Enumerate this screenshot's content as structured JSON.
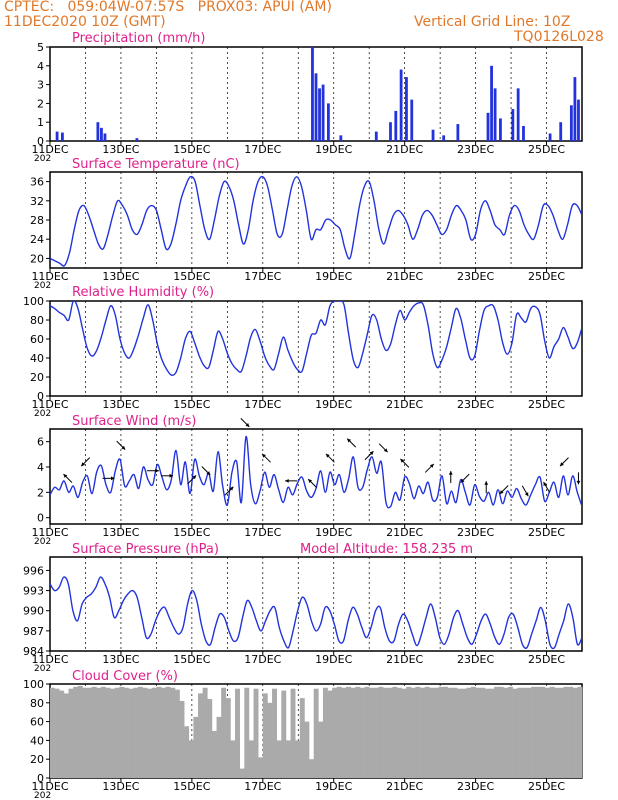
{
  "header": {
    "line1": "CPTEC:   059:04W-07:57S   PROX03: APUI (AM)",
    "line2": "11DEC2020 10Z (GMT)",
    "right1": "Vertical Grid Line: 10Z",
    "right2": "TQ0126L028"
  },
  "model_altitude": "Model Altitude: 158.235 m",
  "x_labels": [
    "11DEC",
    "13DEC",
    "15DEC",
    "17DEC",
    "19DEC",
    "21DEC",
    "23DEC",
    "25DEC"
  ],
  "x_sub": "202",
  "colors": {
    "header": "#e0782a",
    "title": "#e0208a",
    "series": "#2233dd",
    "cloud": "#aaaaaa"
  },
  "chart_data": [
    {
      "id": "precip",
      "type": "bar",
      "title": "Precipitation (mm/h)",
      "ylim": [
        0,
        5
      ],
      "yticks": [
        "0",
        "1",
        "2",
        "3",
        "4",
        "5"
      ],
      "x_range_days": [
        0,
        15
      ],
      "events": [
        [
          0.2,
          0.5
        ],
        [
          0.35,
          0.45
        ],
        [
          1.35,
          1.0
        ],
        [
          1.45,
          0.7
        ],
        [
          1.55,
          0.4
        ],
        [
          2.45,
          0.15
        ],
        [
          7.4,
          5.0
        ],
        [
          7.5,
          3.6
        ],
        [
          7.6,
          2.8
        ],
        [
          7.7,
          3.0
        ],
        [
          7.85,
          2.0
        ],
        [
          8.2,
          0.3
        ],
        [
          9.2,
          0.5
        ],
        [
          9.6,
          1.0
        ],
        [
          9.75,
          1.6
        ],
        [
          9.9,
          3.8
        ],
        [
          10.05,
          3.4
        ],
        [
          10.2,
          2.2
        ],
        [
          10.8,
          0.6
        ],
        [
          11.1,
          0.3
        ],
        [
          11.5,
          0.9
        ],
        [
          12.35,
          1.5
        ],
        [
          12.45,
          4.0
        ],
        [
          12.55,
          2.8
        ],
        [
          12.7,
          1.2
        ],
        [
          13.05,
          1.7
        ],
        [
          13.2,
          2.8
        ],
        [
          13.35,
          0.8
        ],
        [
          14.1,
          0.4
        ],
        [
          14.4,
          1.0
        ],
        [
          14.7,
          1.9
        ],
        [
          14.8,
          3.4
        ],
        [
          14.9,
          2.2
        ]
      ]
    },
    {
      "id": "temp",
      "type": "line",
      "title": "Surface Temperature (nC)",
      "ylim": [
        18,
        38
      ],
      "yticks": [
        "20",
        "24",
        "28",
        "32",
        "36"
      ],
      "ytick_values": [
        20,
        24,
        28,
        32,
        36
      ],
      "values": [
        20,
        19.5,
        19,
        18.5,
        21,
        26,
        30,
        31,
        29,
        26,
        23,
        22,
        25,
        29,
        32,
        31,
        29,
        26,
        25,
        27,
        30,
        31,
        30,
        26,
        22,
        23,
        27,
        32,
        35,
        37,
        36,
        31,
        26,
        24,
        28,
        33,
        36,
        35,
        32,
        27,
        23,
        26,
        32,
        36,
        37,
        35,
        30,
        25,
        25,
        30,
        35,
        37,
        35,
        30,
        24,
        26,
        26,
        28,
        28,
        27,
        26,
        22,
        20,
        25,
        31,
        35,
        36,
        32,
        26,
        23,
        26,
        29,
        30,
        29,
        27,
        24,
        26,
        29,
        30,
        29,
        27,
        25,
        26,
        29,
        31,
        30,
        28,
        24,
        25,
        30,
        32,
        30,
        27,
        26,
        25,
        29,
        31,
        30,
        27,
        25,
        24,
        27,
        31,
        31,
        29,
        26,
        24,
        27,
        31,
        31,
        29
      ]
    },
    {
      "id": "rh",
      "type": "line",
      "title": "Relative Humidity (%)",
      "ylim": [
        0,
        100
      ],
      "yticks": [
        "0",
        "20",
        "40",
        "60",
        "80",
        "100"
      ],
      "ytick_values": [
        0,
        20,
        40,
        60,
        80,
        100
      ],
      "values": [
        95,
        92,
        88,
        85,
        80,
        100,
        92,
        70,
        50,
        42,
        48,
        62,
        80,
        95,
        85,
        60,
        45,
        40,
        50,
        65,
        82,
        96,
        80,
        55,
        38,
        28,
        22,
        25,
        40,
        60,
        68,
        56,
        42,
        32,
        30,
        48,
        68,
        60,
        45,
        34,
        28,
        26,
        42,
        62,
        70,
        58,
        42,
        32,
        28,
        45,
        62,
        48,
        36,
        28,
        26,
        45,
        64,
        66,
        80,
        75,
        95,
        100,
        100,
        96,
        65,
        38,
        30,
        45,
        65,
        85,
        80,
        60,
        48,
        55,
        75,
        90,
        80,
        88,
        95,
        98,
        96,
        75,
        45,
        30,
        38,
        52,
        72,
        92,
        82,
        60,
        40,
        42,
        68,
        90,
        95,
        95,
        80,
        56,
        44,
        56,
        86,
        82,
        78,
        92,
        94,
        86,
        58,
        40,
        52,
        60,
        72,
        62,
        50,
        56,
        72
      ]
    },
    {
      "id": "wind",
      "type": "line",
      "title": "Surface Wind (m/s)",
      "ylim": [
        -0.5,
        7
      ],
      "yticks": [
        "0",
        "2",
        "4",
        "6"
      ],
      "ytick_values": [
        0,
        2,
        4,
        6
      ],
      "values": [
        1.8,
        2.4,
        2.2,
        2.9,
        2.0,
        2.5,
        1.6,
        2.8,
        3.3,
        1.9,
        3.6,
        4.1,
        2.6,
        2.0,
        3.7,
        4.6,
        2.5,
        2.9,
        3.4,
        2.3,
        4.0,
        3.0,
        2.6,
        4.2,
        3.2,
        2.2,
        3.0,
        5.3,
        2.6,
        4.4,
        1.9,
        4.6,
        3.3,
        2.6,
        3.5,
        2.1,
        5.2,
        2.5,
        1.0,
        3.6,
        4.4,
        1.2,
        6.4,
        2.6,
        1.1,
        2.1,
        3.6,
        2.4,
        3.4,
        2.2,
        1.2,
        2.4,
        1.8,
        2.7,
        3.2,
        2.1,
        1.6,
        2.3,
        3.7,
        2.0,
        3.6,
        2.6,
        3.4,
        2.0,
        3.1,
        4.8,
        2.4,
        2.4,
        3.8,
        4.8,
        3.5,
        4.4,
        1.2,
        0.9,
        2.0,
        1.4,
        3.2,
        2.7,
        1.5,
        2.5,
        1.9,
        2.8,
        1.4,
        1.6,
        3.3,
        1.1,
        2.1,
        1.2,
        3.0,
        2.0,
        1.0,
        2.6,
        1.7,
        1.3,
        2.0,
        1.0,
        2.2,
        1.1,
        2.1,
        1.6,
        2.3,
        1.5,
        1.0,
        1.8,
        2.6,
        3.2,
        1.3,
        2.0,
        2.8,
        1.6,
        3.3,
        1.8,
        3.3,
        2.0,
        0.9
      ],
      "arrows": [
        [
          0.5,
          135
        ],
        [
          1.0,
          225
        ],
        [
          1.65,
          0
        ],
        [
          2.0,
          315
        ],
        [
          2.9,
          0
        ],
        [
          3.3,
          0
        ],
        [
          4.0,
          45
        ],
        [
          4.4,
          315
        ],
        [
          5.05,
          45
        ],
        [
          5.5,
          315
        ],
        [
          6.1,
          135
        ],
        [
          6.8,
          180
        ],
        [
          7.4,
          135
        ],
        [
          7.9,
          135
        ],
        [
          8.5,
          135
        ],
        [
          9.0,
          45
        ],
        [
          9.4,
          315
        ],
        [
          10.0,
          135
        ],
        [
          10.7,
          45
        ],
        [
          11.3,
          90
        ],
        [
          11.7,
          225
        ],
        [
          12.3,
          90
        ],
        [
          12.8,
          225
        ],
        [
          13.4,
          300
        ],
        [
          14.0,
          120
        ],
        [
          14.5,
          225
        ],
        [
          14.9,
          270
        ]
      ]
    },
    {
      "id": "pres",
      "type": "line",
      "title": "Surface Pressure (hPa)",
      "ylim": [
        984,
        998
      ],
      "yticks": [
        "984",
        "987",
        "990",
        "993",
        "996"
      ],
      "ytick_values": [
        984,
        987,
        990,
        993,
        996
      ],
      "values": [
        994,
        993,
        993.5,
        995,
        994,
        990,
        988.5,
        991,
        992,
        992.5,
        993.5,
        995,
        994,
        992,
        989,
        990,
        991.5,
        992.5,
        993,
        992,
        989,
        986,
        986.5,
        988.5,
        990,
        990.5,
        989,
        987.5,
        986.5,
        987.5,
        991,
        993,
        991.5,
        988,
        985.5,
        985,
        987.5,
        989.5,
        989,
        987,
        985.5,
        986,
        989,
        991.5,
        990.5,
        988.5,
        987,
        988.5,
        990,
        990.5,
        987.5,
        985.5,
        984.5,
        987,
        990,
        992,
        991,
        988.5,
        987,
        988,
        990.5,
        990,
        988,
        985.5,
        985.5,
        988.5,
        990.5,
        989.5,
        987.5,
        986,
        987.5,
        990,
        990.5,
        987.5,
        985.5,
        985.5,
        988,
        989.5,
        988.5,
        986.5,
        984.8,
        986.5,
        989,
        991,
        989,
        986,
        985,
        986.5,
        989,
        990,
        988,
        986,
        985,
        986.5,
        988.5,
        989.5,
        988,
        986,
        985,
        986.5,
        989,
        989.5,
        987.5,
        985,
        984.5,
        986.5,
        988.5,
        990.5,
        988.5,
        985,
        984.5,
        986.5,
        988.5,
        991,
        989,
        985,
        986
      ]
    },
    {
      "id": "cloud",
      "type": "area",
      "title": "Cloud Cover (%)",
      "ylim": [
        0,
        100
      ],
      "yticks": [
        "0",
        "20",
        "40",
        "60",
        "80",
        "100"
      ],
      "ytick_values": [
        0,
        20,
        40,
        60,
        80,
        100
      ],
      "values": [
        96,
        95,
        93,
        90,
        95,
        97,
        98,
        96,
        96,
        97,
        96,
        97,
        96,
        95,
        96,
        97,
        96,
        95,
        96,
        97,
        96,
        95,
        96,
        97,
        96,
        97,
        96,
        94,
        82,
        55,
        40,
        65,
        90,
        96,
        84,
        50,
        65,
        96,
        85,
        40,
        95,
        10,
        96,
        40,
        95,
        22,
        90,
        80,
        95,
        40,
        93,
        40,
        95,
        40,
        85,
        60,
        20,
        95,
        60,
        96,
        93,
        96,
        97,
        96,
        97,
        96,
        97,
        96,
        97,
        96,
        96,
        97,
        96,
        96,
        97,
        96,
        95,
        97,
        96,
        97,
        96,
        97,
        96,
        96,
        97,
        97,
        96,
        96,
        95,
        95,
        96,
        97,
        96,
        96,
        95,
        95,
        97,
        97,
        96,
        97,
        95,
        96,
        96,
        96,
        97,
        97,
        97,
        96,
        97,
        96,
        96,
        97,
        97,
        96,
        97
      ]
    }
  ]
}
